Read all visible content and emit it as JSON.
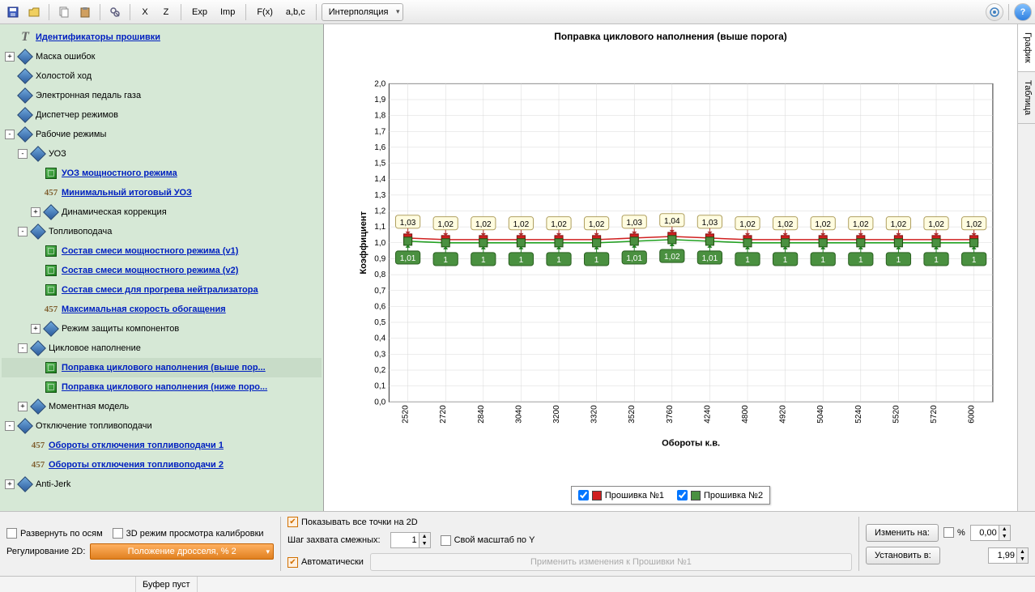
{
  "toolbar": {
    "save_icon": "save",
    "open_icon": "open",
    "copy_icon": "copy",
    "paste_icon": "paste",
    "find_icon": "find",
    "x_btn": "X",
    "z_btn": "Z",
    "exp_btn": "Exp",
    "imp_btn": "Imp",
    "fx_btn": "F(x)",
    "abc_btn": "a,b,c",
    "dropdown": "Интерполяция",
    "gear_icon": "gear",
    "help_icon": "?"
  },
  "tree": [
    {
      "d": 0,
      "exp": "",
      "ico": "T",
      "label": "Идентификаторы прошивки",
      "link": true
    },
    {
      "d": 0,
      "exp": "+",
      "ico": "diamond",
      "label": "Маска ошибок",
      "link": false
    },
    {
      "d": 0,
      "exp": "",
      "ico": "diamond",
      "label": "Холостой ход",
      "link": false
    },
    {
      "d": 0,
      "exp": "",
      "ico": "diamond",
      "label": "Электронная педаль газа",
      "link": false
    },
    {
      "d": 0,
      "exp": "",
      "ico": "diamond",
      "label": "Диспетчер режимов",
      "link": false
    },
    {
      "d": 0,
      "exp": "-",
      "ico": "diamond",
      "label": "Рабочие режимы",
      "link": false
    },
    {
      "d": 1,
      "exp": "-",
      "ico": "diamond",
      "label": "УОЗ",
      "link": false
    },
    {
      "d": 2,
      "exp": "",
      "ico": "cube",
      "label": "УОЗ мощностного режима",
      "link": true
    },
    {
      "d": 2,
      "exp": "",
      "ico": "457",
      "label": "Минимальный итоговый УОЗ",
      "link": true
    },
    {
      "d": 2,
      "exp": "+",
      "ico": "diamond",
      "label": "Динамическая коррекция",
      "link": false
    },
    {
      "d": 1,
      "exp": "-",
      "ico": "diamond",
      "label": "Топливоподача",
      "link": false
    },
    {
      "d": 2,
      "exp": "",
      "ico": "cube",
      "label": "Состав смеси мощностного режима (v1)",
      "link": true
    },
    {
      "d": 2,
      "exp": "",
      "ico": "cube",
      "label": "Состав смеси мощностного режима (v2)",
      "link": true
    },
    {
      "d": 2,
      "exp": "",
      "ico": "cube",
      "label": "Состав смеси для прогрева нейтрализатора",
      "link": true
    },
    {
      "d": 2,
      "exp": "",
      "ico": "457",
      "label": "Максимальная скорость обогащения",
      "link": true
    },
    {
      "d": 2,
      "exp": "+",
      "ico": "diamond",
      "label": "Режим защиты компонентов",
      "link": false
    },
    {
      "d": 1,
      "exp": "-",
      "ico": "diamond",
      "label": "Цикловое наполнение",
      "link": false
    },
    {
      "d": 2,
      "exp": "",
      "ico": "cube",
      "label": "Поправка циклового наполнения (выше пор...",
      "link": true,
      "sel": true
    },
    {
      "d": 2,
      "exp": "",
      "ico": "cube",
      "label": "Поправка циклового наполнения (ниже поро...",
      "link": true
    },
    {
      "d": 1,
      "exp": "+",
      "ico": "diamond",
      "label": "Моментная модель",
      "link": false
    },
    {
      "d": 0,
      "exp": "-",
      "ico": "diamond",
      "label": "Отключение топливоподачи",
      "link": false
    },
    {
      "d": 1,
      "exp": "",
      "ico": "457",
      "label": "Обороты отключения топливоподачи 1",
      "link": true
    },
    {
      "d": 1,
      "exp": "",
      "ico": "457",
      "label": "Обороты отключения топливоподачи 2",
      "link": true
    },
    {
      "d": 0,
      "exp": "+",
      "ico": "diamond",
      "label": "Anti-Jerk",
      "link": false
    }
  ],
  "chart": {
    "title": "Поправка циклового наполнения (выше порога)",
    "xlabel": "Обороты к.в.",
    "ylabel": "Коэффициент",
    "ylim": [
      0,
      2
    ],
    "ytick_step": 0.1,
    "xticks": [
      "2520",
      "2720",
      "2840",
      "3040",
      "3200",
      "3320",
      "3520",
      "3760",
      "4240",
      "4800",
      "4920",
      "5040",
      "5240",
      "5520",
      "5720",
      "6000"
    ],
    "series1": {
      "name": "Прошивка №1",
      "color": "#d02020",
      "marker": "#d02020",
      "values": [
        1.03,
        1.02,
        1.02,
        1.02,
        1.02,
        1.02,
        1.03,
        1.04,
        1.03,
        1.02,
        1.02,
        1.02,
        1.02,
        1.02,
        1.02,
        1.02
      ],
      "labels": [
        "1,03",
        "1,02",
        "1,02",
        "1,02",
        "1,02",
        "1,02",
        "1,03",
        "1,04",
        "1,03",
        "1,02",
        "1,02",
        "1,02",
        "1,02",
        "1,02",
        "1,02",
        "1,02"
      ]
    },
    "series2": {
      "name": "Прошивка №2",
      "color": "#20a020",
      "marker": "#4a9040",
      "values": [
        1.01,
        1,
        1,
        1,
        1,
        1,
        1.01,
        1.02,
        1.01,
        1,
        1,
        1,
        1,
        1,
        1,
        1
      ],
      "labels": [
        "1,01",
        "1",
        "1",
        "1",
        "1",
        "1",
        "1,01",
        "1,02",
        "1,01",
        "1",
        "1",
        "1",
        "1",
        "1",
        "1",
        "1"
      ]
    },
    "bg": "#ffffff",
    "grid": "#d8d8d8"
  },
  "right_tabs": {
    "t1": "График",
    "t2": "Таблица"
  },
  "bottom": {
    "expand_axes": "Развернуть по осям",
    "view_3d": "3D режим просмотра калибровки",
    "reg_2d_label": "Регулирование 2D:",
    "reg_2d_value": "Положение дросселя, % 2",
    "show_all_2d": "Показывать все точки на 2D",
    "step_label": "Шаг захвата смежных:",
    "step_value": "1",
    "own_scale": "Свой масштаб по Y",
    "auto": "Автоматически",
    "apply_disabled": "Применить изменения к Прошивки №1",
    "change_to": "Изменить на:",
    "pct": "%",
    "change_val": "0,00",
    "set_to": "Установить в:",
    "set_val": "1,99"
  },
  "status": {
    "buffer": "Буфер пуст"
  }
}
